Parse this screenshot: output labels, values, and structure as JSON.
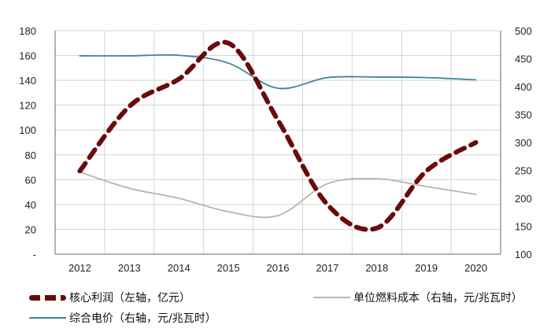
{
  "chart_data": {
    "type": "line",
    "title": "",
    "categories": [
      "2012",
      "2013",
      "2014",
      "2015",
      "2016",
      "2017",
      "2018",
      "2019",
      "2020"
    ],
    "series": [
      {
        "name": "核心利润（左轴，亿元）",
        "axis": "left",
        "style": "dashed",
        "color": "#6b0a0a",
        "values": [
          67,
          119,
          141,
          170,
          108,
          40,
          21,
          67,
          90
        ]
      },
      {
        "name": "单位燃料成本（右轴，元/兆瓦时）",
        "axis": "right",
        "style": "solid",
        "color": "#b8b5a5",
        "values": [
          247,
          218,
          200,
          176,
          169,
          226,
          235,
          221,
          207
        ]
      },
      {
        "name": "综合电价（右轴，元/兆瓦时）",
        "axis": "right",
        "style": "solid",
        "color": "#3b8796",
        "values": [
          455,
          455,
          456,
          442,
          397,
          416,
          417,
          416,
          412
        ]
      }
    ],
    "left_axis": {
      "ylim": [
        0,
        180
      ],
      "ticks": [
        "180",
        "160",
        "140",
        "120",
        "100",
        "80",
        "60",
        "40",
        "20",
        "-"
      ]
    },
    "right_axis": {
      "ylim": [
        100,
        500
      ],
      "ticks": [
        "500",
        "450",
        "400",
        "350",
        "300",
        "250",
        "200",
        "150",
        "100"
      ]
    },
    "xlabel": "",
    "ylabel": "",
    "grid": true,
    "legend_position": "bottom"
  },
  "legend": {
    "profit": "核心利润（左轴，亿元）",
    "cost": "单位燃料成本（右轴，元/兆瓦时）",
    "price": "综合电价（右轴，元/兆瓦时）"
  }
}
